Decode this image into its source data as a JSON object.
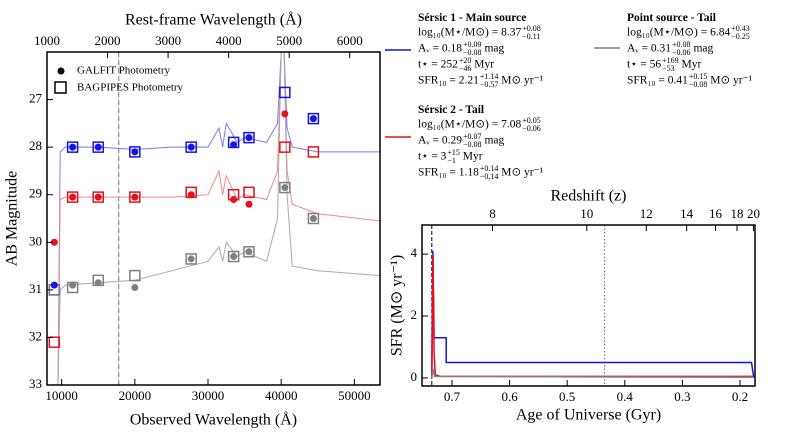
{
  "chart_data": [
    {
      "type": "sed",
      "x_label": "Observed Wavelength (Å)",
      "x2_label": "Rest-frame Wavelength (Å)",
      "y_label": "AB Magnitude",
      "xlim": [
        8000,
        53500
      ],
      "xticks": [
        10000,
        20000,
        30000,
        40000,
        50000
      ],
      "x2lim": [
        1000,
        6500
      ],
      "x2ticks": [
        1000,
        2000,
        3000,
        4000,
        5000,
        6000
      ],
      "ylim": [
        33,
        26
      ],
      "yticks": [
        27,
        28,
        29,
        30,
        31,
        32,
        33
      ],
      "vline": 17800,
      "legend": [
        "GALFIT Photometry",
        "BAGPIPES Photometry"
      ],
      "spectrum": {
        "x": [
          8000,
          9500,
          9800,
          10500,
          15000,
          20000,
          25000,
          30000,
          31500,
          32000,
          32500,
          34000,
          35000,
          38000,
          39500,
          40000,
          40400,
          40800,
          41500,
          45000,
          53500
        ],
        "series": [
          {
            "color": "#7b7bf5",
            "values": [
              33,
              33,
              28.1,
              28.0,
              28.0,
              28.05,
              28.0,
              28.0,
              27.6,
              28.0,
              27.5,
              27.9,
              27.8,
              27.9,
              27.5,
              26,
              26,
              27.6,
              28.0,
              28.1,
              28.1
            ]
          },
          {
            "color": "#f08a8a",
            "values": [
              33,
              33,
              29.1,
              29.05,
              29.05,
              29.05,
              29.05,
              29.0,
              28.5,
              29.0,
              28.6,
              29.1,
              29.0,
              29.1,
              28.5,
              26,
              26,
              28.5,
              29.2,
              29.4,
              29.55
            ]
          },
          {
            "color": "#aaaaaa",
            "values": [
              33,
              33,
              31.0,
              30.9,
              30.85,
              30.8,
              30.6,
              30.4,
              30.1,
              30.4,
              30.0,
              30.3,
              30.2,
              30.4,
              29.5,
              26,
              26,
              29.0,
              30.5,
              30.6,
              30.7
            ]
          }
        ]
      },
      "galfit": {
        "x": [
          9000,
          11500,
          15000,
          20000,
          27700,
          33500,
          35600,
          40500,
          44400
        ],
        "series": [
          {
            "color": "#1414e6",
            "values": [
              30.9,
              28.0,
              28.0,
              28.1,
              28.0,
              27.95,
              27.8,
              null,
              27.4
            ]
          },
          {
            "color": "#e8101a",
            "values": [
              30.0,
              29.05,
              29.05,
              29.05,
              29.0,
              29.1,
              29.2,
              27.3,
              null
            ]
          },
          {
            "color": "#808080",
            "values": [
              null,
              30.9,
              30.85,
              30.95,
              30.35,
              30.3,
              30.2,
              28.85,
              29.5
            ]
          }
        ]
      },
      "bagpipes": {
        "x": [
          9000,
          11500,
          15000,
          20000,
          27700,
          33500,
          35600,
          40500,
          44400
        ],
        "series": [
          {
            "color": "#1414e6",
            "values": [
              31.0,
              28.0,
              28.0,
              28.1,
              28.0,
              27.9,
              27.8,
              26.85,
              27.4
            ]
          },
          {
            "color": "#e8101a",
            "values": [
              32.1,
              29.05,
              29.05,
              29.05,
              28.95,
              29.0,
              28.95,
              28.0,
              28.1
            ]
          },
          {
            "color": "#808080",
            "values": [
              31.0,
              30.95,
              30.8,
              30.7,
              30.35,
              30.3,
              30.2,
              28.85,
              29.5
            ]
          }
        ]
      }
    },
    {
      "type": "sfh",
      "x_label": "Age of Universe (Gyr)",
      "x2_label": "Redshift (z)",
      "y_label": "SFR (M⊙ yr⁻¹)",
      "xlim": [
        0.752,
        0.174
      ],
      "xticks": [
        0.7,
        0.6,
        0.5,
        0.4,
        0.3,
        0.2
      ],
      "x2ticks": [
        8,
        10,
        12,
        14,
        16,
        18,
        20
      ],
      "ylim": [
        -0.26,
        4.94
      ],
      "yticks": [
        0,
        2,
        4
      ],
      "vlines": [
        0.735,
        0.435
      ],
      "series": [
        {
          "color": "#1414e6",
          "x": [
            0.735,
            0.733,
            0.731,
            0.728,
            0.71,
            0.71,
            0.18,
            0.176
          ],
          "values": [
            0,
            4.1,
            1.3,
            1.3,
            1.3,
            0.5,
            0.5,
            0
          ]
        },
        {
          "color": "#e8101a",
          "x": [
            0.735,
            0.733,
            0.731,
            0.729,
            0.72,
            0.176
          ],
          "values": [
            0,
            4.0,
            0.8,
            0.1,
            0.05,
            0.05
          ]
        },
        {
          "color": "#808080",
          "x": [
            0.735,
            0.733,
            0.73,
            0.176
          ],
          "values": [
            0,
            0.3,
            0.05,
            0.02
          ]
        }
      ]
    }
  ],
  "sources": [
    {
      "title": "Sérsic 1 - Main source",
      "color": "#1414e6",
      "rows": [
        {
          "label": "log₁₀(M⋆/M⊙) = ",
          "value": "8.37",
          "plus": "+0.08",
          "minus": "−0.11"
        },
        {
          "label": "Aᵥ = ",
          "value": "0.18",
          "plus": "+0.09",
          "minus": "−0.08",
          "unit": " mag"
        },
        {
          "label": "t⋆ = ",
          "value": "252",
          "plus": "+20",
          "minus": "−46",
          "unit": " Myr"
        },
        {
          "label": "SFR₁₀ = ",
          "value": "2.21",
          "plus": "+1.14",
          "minus": "−0.57",
          "unit": " M⊙ yr⁻¹"
        }
      ]
    },
    {
      "title": "Sérsic 2 - Tail",
      "color": "#e8101a",
      "rows": [
        {
          "label": "log₁₀(M⋆/M⊙) = ",
          "value": "7.08",
          "plus": "+0.05",
          "minus": "−0.06"
        },
        {
          "label": "Aᵥ = ",
          "value": "0.29",
          "plus": "+0.07",
          "minus": "−0.08",
          "unit": " mag"
        },
        {
          "label": "t⋆ = ",
          "value": "3",
          "plus": "+15",
          "minus": "−1",
          "unit": " Myr"
        },
        {
          "label": "SFR₁₀ = ",
          "value": "1.18",
          "plus": "+0.14",
          "minus": "−0.14",
          "unit": " M⊙ yr⁻¹"
        }
      ]
    },
    {
      "title": "Point source - Tail",
      "color": "#808080",
      "rows": [
        {
          "label": "log₁₀(M⋆/M⊙) = ",
          "value": "6.84",
          "plus": "+0.43",
          "minus": "−0.25"
        },
        {
          "label": "Aᵥ = ",
          "value": "0.31",
          "plus": "+0.08",
          "minus": "−0.06",
          "unit": " mag"
        },
        {
          "label": "t⋆ = ",
          "value": "56",
          "plus": "+169",
          "minus": "−53",
          "unit": " Myr"
        },
        {
          "label": "SFR₁₀ = ",
          "value": "0.41",
          "plus": "+0.15",
          "minus": "−0.08",
          "unit": " M⊙ yr⁻¹"
        }
      ]
    }
  ]
}
